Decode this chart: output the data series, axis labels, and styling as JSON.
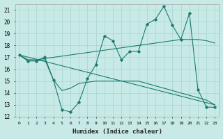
{
  "xlabel": "Humidex (Indice chaleur)",
  "bg_color": "#c8eae6",
  "grid_color": "#a8d4d0",
  "line_color": "#1a7a6e",
  "xlim": [
    -0.5,
    23.5
  ],
  "ylim": [
    12,
    21.5
  ],
  "xticks": [
    0,
    1,
    2,
    3,
    4,
    5,
    6,
    7,
    8,
    9,
    10,
    11,
    12,
    13,
    14,
    15,
    16,
    17,
    18,
    19,
    20,
    21,
    22,
    23
  ],
  "yticks": [
    12,
    13,
    14,
    15,
    16,
    17,
    18,
    19,
    20,
    21
  ],
  "line1_x": [
    0,
    1,
    2,
    3,
    4,
    5,
    6,
    7,
    8,
    9,
    10,
    11,
    12,
    13,
    14,
    15,
    16,
    17,
    18,
    19,
    20,
    21,
    22,
    23
  ],
  "line1_y": [
    17.2,
    16.7,
    16.7,
    17.0,
    15.1,
    12.6,
    12.4,
    13.2,
    15.2,
    16.4,
    18.8,
    18.4,
    16.8,
    17.5,
    17.5,
    19.8,
    20.2,
    21.3,
    19.7,
    18.5,
    20.7,
    14.3,
    12.8,
    12.8
  ],
  "line2_x": [
    0,
    23
  ],
  "line2_y": [
    17.2,
    13.0
  ],
  "line3_x": [
    0,
    1,
    2,
    3,
    4,
    5,
    6,
    7,
    8,
    9,
    10,
    11,
    12,
    13,
    14,
    15,
    16,
    17,
    18,
    19,
    20,
    21,
    22,
    23
  ],
  "line3_y": [
    17.2,
    16.8,
    16.8,
    16.9,
    17.0,
    17.1,
    17.2,
    17.3,
    17.4,
    17.5,
    17.6,
    17.7,
    17.8,
    17.9,
    18.0,
    18.1,
    18.2,
    18.3,
    18.4,
    18.5,
    18.5,
    18.5,
    18.4,
    18.2
  ],
  "line4_x": [
    0,
    1,
    2,
    3,
    4,
    5,
    6,
    7,
    8,
    9,
    10,
    11,
    12,
    13,
    14,
    15,
    16,
    17,
    18,
    19,
    20,
    21,
    22,
    23
  ],
  "line4_y": [
    17.2,
    16.7,
    16.7,
    16.8,
    15.1,
    14.2,
    14.4,
    14.8,
    14.9,
    15.0,
    15.0,
    15.0,
    15.0,
    15.0,
    15.0,
    14.8,
    14.6,
    14.4,
    14.2,
    14.0,
    13.8,
    13.6,
    13.4,
    13.0
  ]
}
